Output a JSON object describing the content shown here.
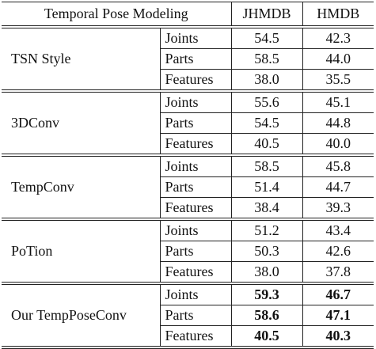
{
  "header": {
    "method_col": "Temporal Pose Modeling",
    "col_jhmdb": "JHMDB",
    "col_hmdb": "HMDB"
  },
  "groups": [
    {
      "method": "TSN Style",
      "rows": [
        {
          "rep": "Joints",
          "jhmdb": "54.5",
          "hmdb": "42.3",
          "bold": false
        },
        {
          "rep": "Parts",
          "jhmdb": "58.5",
          "hmdb": "44.0",
          "bold": false
        },
        {
          "rep": "Features",
          "jhmdb": "38.0",
          "hmdb": "35.5",
          "bold": false
        }
      ]
    },
    {
      "method": "3DConv",
      "rows": [
        {
          "rep": "Joints",
          "jhmdb": "55.6",
          "hmdb": "45.1",
          "bold": false
        },
        {
          "rep": "Parts",
          "jhmdb": "54.5",
          "hmdb": "44.8",
          "bold": false
        },
        {
          "rep": "Features",
          "jhmdb": "40.5",
          "hmdb": "40.0",
          "bold": false
        }
      ]
    },
    {
      "method": "TempConv",
      "rows": [
        {
          "rep": "Joints",
          "jhmdb": "58.5",
          "hmdb": "45.8",
          "bold": false
        },
        {
          "rep": "Parts",
          "jhmdb": "51.4",
          "hmdb": "44.7",
          "bold": false
        },
        {
          "rep": "Features",
          "jhmdb": "38.4",
          "hmdb": "39.3",
          "bold": false
        }
      ]
    },
    {
      "method": "PoTion",
      "rows": [
        {
          "rep": "Joints",
          "jhmdb": "51.2",
          "hmdb": "43.4",
          "bold": false
        },
        {
          "rep": "Parts",
          "jhmdb": "50.3",
          "hmdb": "42.6",
          "bold": false
        },
        {
          "rep": "Features",
          "jhmdb": "38.0",
          "hmdb": "37.8",
          "bold": false
        }
      ]
    },
    {
      "method": "Our TempPoseConv",
      "rows": [
        {
          "rep": "Joints",
          "jhmdb": "59.3",
          "hmdb": "46.7",
          "bold": true
        },
        {
          "rep": "Parts",
          "jhmdb": "58.6",
          "hmdb": "47.1",
          "bold": true
        },
        {
          "rep": "Features",
          "jhmdb": "40.5",
          "hmdb": "40.3",
          "bold": true
        }
      ]
    }
  ]
}
